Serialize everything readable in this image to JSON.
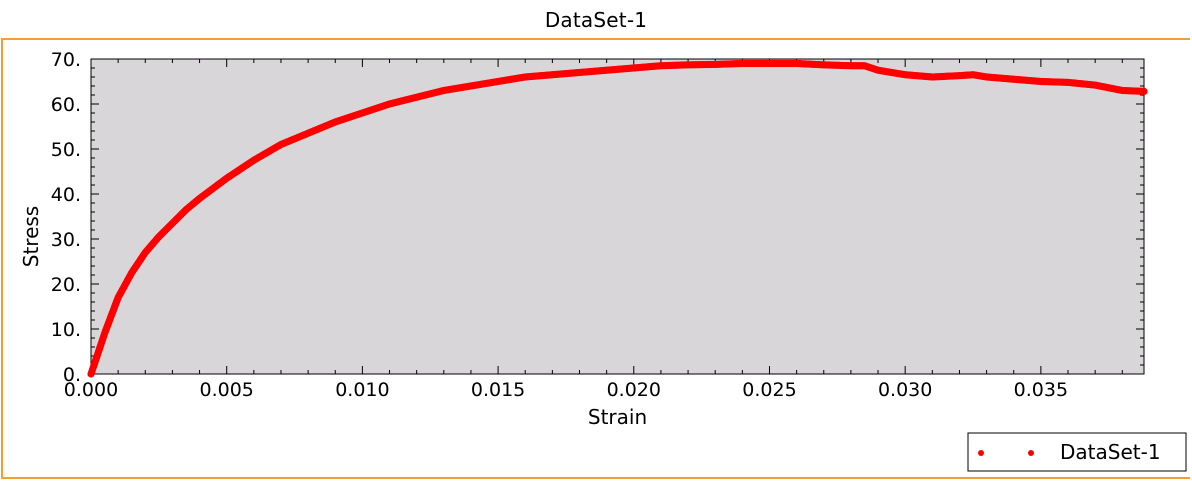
{
  "window": {
    "title": "DataSet-1"
  },
  "colors": {
    "plot_background": "#d8d6d8",
    "series": "#ff0000",
    "frame_accent": "#f0a030",
    "axis": "#000000"
  },
  "chart_data": {
    "type": "scatter",
    "title": "",
    "xlabel": "Strain",
    "ylabel": "Stress",
    "xlim": [
      0,
      0.0388
    ],
    "ylim": [
      0,
      70
    ],
    "x_ticks": [
      0,
      0.005,
      0.01,
      0.015,
      0.02,
      0.025,
      0.03,
      0.035
    ],
    "x_tick_labels": [
      "0.000",
      "0.005",
      "0.010",
      "0.015",
      "0.020",
      "0.025",
      "0.030",
      "0.035"
    ],
    "y_ticks": [
      0,
      10,
      20,
      30,
      40,
      50,
      60,
      70
    ],
    "y_tick_labels": [
      "0.",
      "10.",
      "20.",
      "30.",
      "40.",
      "50.",
      "60.",
      "70."
    ],
    "grid": false,
    "legend_position": "bottom-right",
    "series": [
      {
        "name": "DataSet-1",
        "color": "#ff0000",
        "x": [
          0,
          0.0005,
          0.001,
          0.0015,
          0.002,
          0.0025,
          0.003,
          0.0035,
          0.004,
          0.005,
          0.006,
          0.007,
          0.008,
          0.009,
          0.01,
          0.011,
          0.012,
          0.013,
          0.014,
          0.015,
          0.016,
          0.017,
          0.018,
          0.019,
          0.02,
          0.021,
          0.022,
          0.023,
          0.024,
          0.025,
          0.026,
          0.027,
          0.028,
          0.0285,
          0.029,
          0.03,
          0.031,
          0.032,
          0.0325,
          0.033,
          0.034,
          0.035,
          0.036,
          0.037,
          0.038,
          0.0388
        ],
        "y": [
          0,
          9,
          17,
          22.5,
          27,
          30.5,
          33.5,
          36.5,
          39,
          43.5,
          47.5,
          51,
          53.5,
          56,
          58,
          60,
          61.5,
          63,
          64,
          65,
          66,
          66.5,
          67,
          67.5,
          68,
          68.5,
          68.7,
          68.8,
          69,
          69,
          69,
          68.7,
          68.5,
          68.5,
          67.5,
          66.5,
          66,
          66.3,
          66.5,
          66,
          65.5,
          65,
          64.8,
          64.2,
          63,
          62.8
        ]
      }
    ]
  }
}
